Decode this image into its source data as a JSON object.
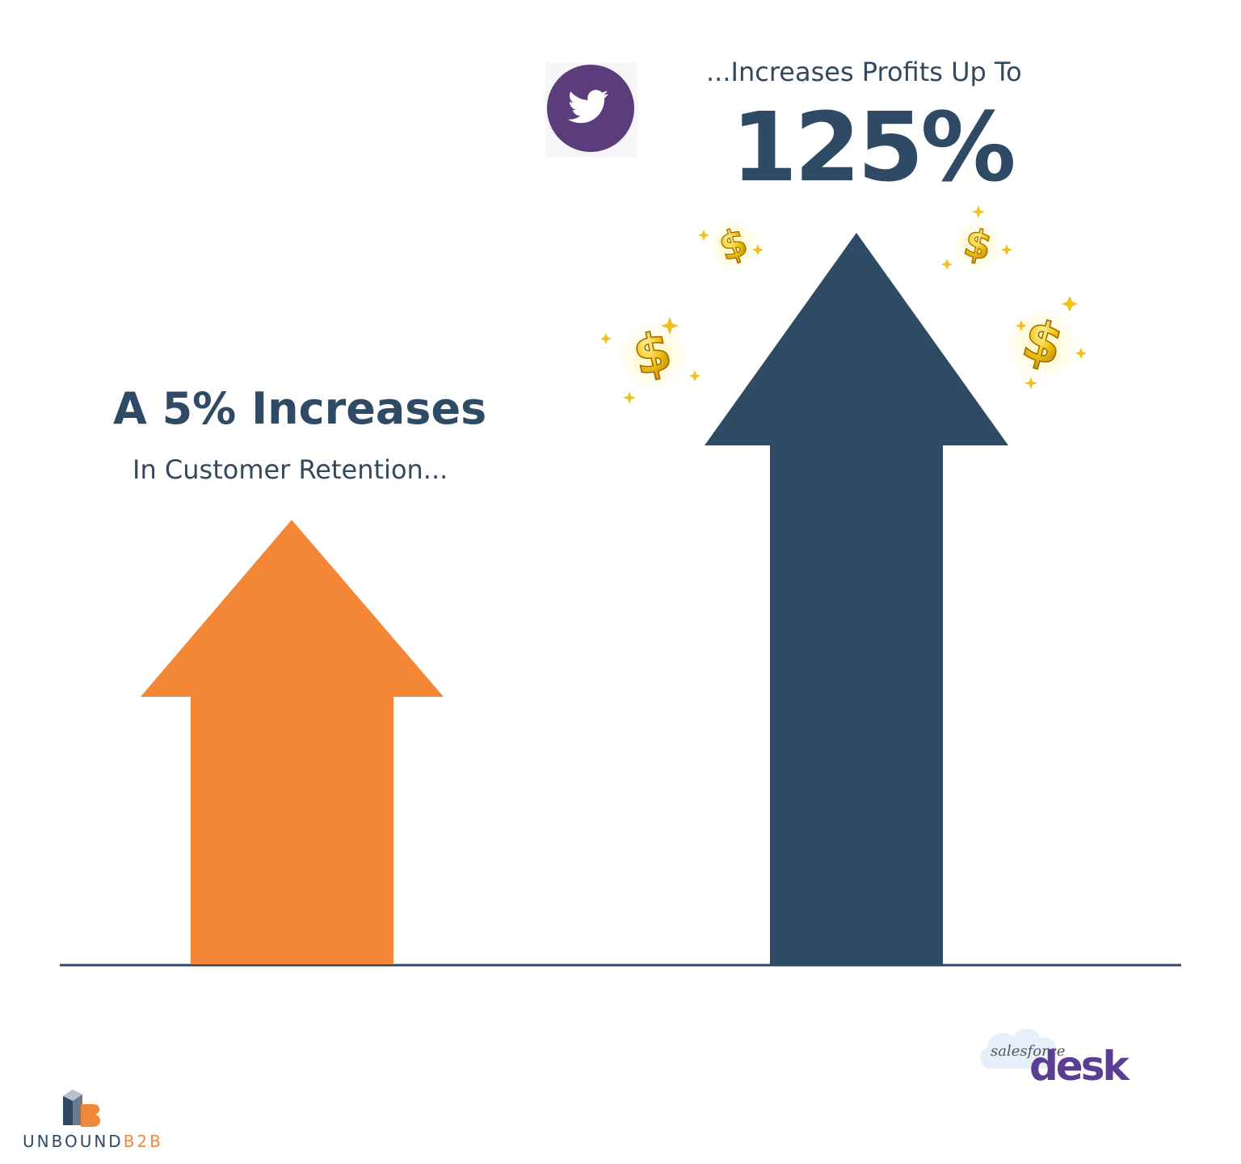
{
  "left": {
    "title": "A 5% Increases",
    "subtitle": "In Customer Retention..."
  },
  "right": {
    "lead": "...Increases Profits Up To",
    "value": "125%"
  },
  "share": {
    "icon": "twitter-bird-icon"
  },
  "brands": {
    "unbound_part1": "UNBOUND",
    "unbound_part2": "B2B",
    "salesforce_prefix": "salesforce",
    "salesforce_product": "desk"
  },
  "colors": {
    "navy": "#2f4a65",
    "orange": "#f48735",
    "purple": "#5b3d94",
    "gold": "#f2c21a"
  }
}
